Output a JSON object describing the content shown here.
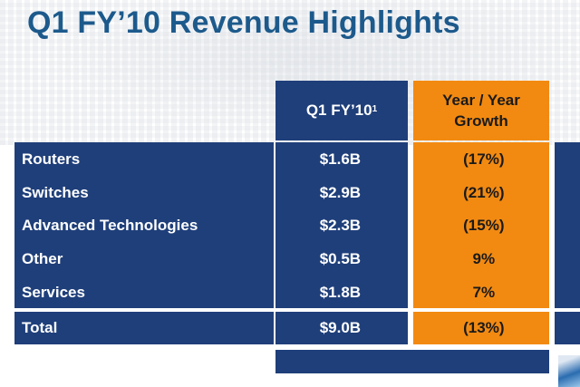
{
  "title": "Q1 FY’10 Revenue Highlights",
  "header": {
    "col1": "Q1 FY’10",
    "col1_sup": "1",
    "col2_line1": "Year / Year",
    "col2_line2": "Growth"
  },
  "rows": [
    {
      "label": "Routers",
      "value": "$1.6B",
      "growth": "(17%)"
    },
    {
      "label": "Switches",
      "value": "$2.9B",
      "growth": "(21%)"
    },
    {
      "label": "Advanced Technologies",
      "value": "$2.3B",
      "growth": "(15%)"
    },
    {
      "label": "Other",
      "value": "$0.5B",
      "growth": "9%"
    },
    {
      "label": "Services",
      "value": "$1.8B",
      "growth": "7%"
    }
  ],
  "total": {
    "label": "Total",
    "value": "$9.0B",
    "growth": "(13%)"
  },
  "colors": {
    "navy": "#1f3f7a",
    "orange": "#f28a12",
    "title": "#1d5a8c"
  }
}
